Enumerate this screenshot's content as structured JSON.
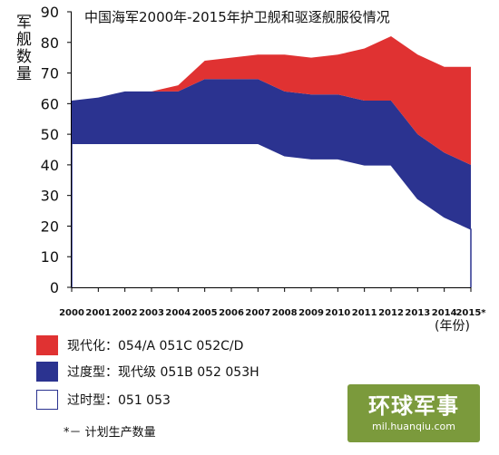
{
  "chart_data": {
    "type": "area",
    "title": "中国海军2000年-2015年护卫舰和驱逐舰服役情况",
    "ylabel": "军舰数量",
    "xlabel": "(年份)",
    "x": [
      "2000",
      "2001",
      "2002",
      "2003",
      "2004",
      "2005",
      "2006",
      "2007",
      "2008",
      "2009",
      "2010",
      "2011",
      "2012",
      "2013",
      "2014",
      "2015*"
    ],
    "ylim": [
      0,
      90
    ],
    "yticks": [
      0,
      10,
      20,
      30,
      40,
      50,
      60,
      70,
      80,
      90
    ],
    "stacked": true,
    "series": [
      {
        "name": "过时型：051 053",
        "color": "#ffffff",
        "values": [
          47,
          47,
          47,
          47,
          47,
          47,
          47,
          47,
          43,
          42,
          42,
          40,
          40,
          29,
          23,
          19
        ]
      },
      {
        "name": "过度型：现代级 051B 052 053H",
        "color": "#2b3390",
        "values": [
          14,
          15,
          17,
          17,
          17,
          21,
          21,
          21,
          21,
          21,
          21,
          21,
          21,
          21,
          21,
          21
        ]
      },
      {
        "name": "现代化：054/A 051C 052C/D",
        "color": "#e03232",
        "values": [
          0,
          0,
          0,
          0,
          2,
          6,
          7,
          8,
          12,
          12,
          13,
          17,
          21,
          26,
          28,
          32
        ]
      }
    ],
    "grid": false,
    "legend": "bottom-left"
  },
  "legend": [
    {
      "label": "现代化：054/A 051C 052C/D",
      "color": "#e03232"
    },
    {
      "label": "过度型：现代级  051B  052  053H",
      "color": "#2b3390"
    },
    {
      "label": "过时型：051  053",
      "color": "#ffffff"
    }
  ],
  "footnote": "*－ 计划生产数量",
  "watermark": {
    "main": "环球军事",
    "sub": "mil.huanqiu.com"
  }
}
